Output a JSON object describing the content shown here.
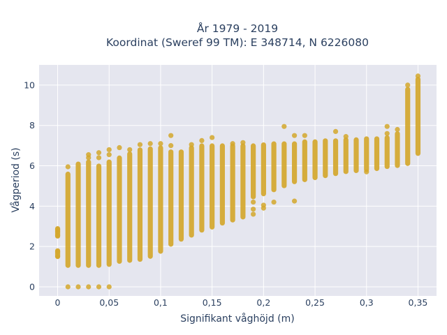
{
  "chart_data": {
    "type": "scatter",
    "title_line1": "År 1979 - 2019",
    "title_line2": "Koordinat (Sweref 99 TM): E 348714, N 6226080",
    "xlabel": "Signifikant våghöjd (m)",
    "ylabel": "Vågperiod (s)",
    "xlim": [
      -0.018,
      0.368
    ],
    "ylim": [
      -0.45,
      11.0
    ],
    "grid": true,
    "x_ticks": [
      0,
      0.05,
      0.1,
      0.15,
      0.2,
      0.25,
      0.3,
      0.35
    ],
    "x_tick_labels": [
      "0",
      "0,05",
      "0,1",
      "0,15",
      "0,2",
      "0,25",
      "0,3",
      "0,35"
    ],
    "y_ticks": [
      0,
      2,
      4,
      6,
      8,
      10
    ],
    "y_tick_labels": [
      "0",
      "2",
      "4",
      "6",
      "8",
      "10"
    ],
    "marker_color": "#d4a72c",
    "plot_bg": "#e5e6ef",
    "grid_color": "#ffffff",
    "columns": [
      {
        "x": 0.0,
        "ranges": [
          [
            1.5,
            1.8
          ],
          [
            2.5,
            2.9
          ]
        ],
        "outliers": [
          1.5,
          1.75,
          2.55,
          2.75,
          2.85
        ]
      },
      {
        "x": 0.01,
        "ranges": [
          [
            1.05,
            5.6
          ]
        ],
        "outliers": [
          0,
          5.95
        ]
      },
      {
        "x": 0.02,
        "ranges": [
          [
            1.05,
            6.1
          ]
        ],
        "outliers": [
          0
        ]
      },
      {
        "x": 0.03,
        "ranges": [
          [
            1.05,
            6.2
          ]
        ],
        "outliers": [
          0,
          6.4,
          6.55
        ]
      },
      {
        "x": 0.04,
        "ranges": [
          [
            1.05,
            6.0
          ]
        ],
        "outliers": [
          0,
          6.4,
          6.65
        ]
      },
      {
        "x": 0.05,
        "ranges": [
          [
            1.1,
            6.2
          ]
        ],
        "outliers": [
          0,
          6.55,
          6.8
        ]
      },
      {
        "x": 0.06,
        "ranges": [
          [
            1.25,
            6.4
          ]
        ],
        "outliers": [
          6.9
        ]
      },
      {
        "x": 0.07,
        "ranges": [
          [
            1.3,
            6.6
          ]
        ],
        "outliers": [
          6.8
        ]
      },
      {
        "x": 0.08,
        "ranges": [
          [
            1.35,
            6.8
          ]
        ],
        "outliers": [
          7.05
        ]
      },
      {
        "x": 0.09,
        "ranges": [
          [
            1.5,
            6.85
          ]
        ],
        "outliers": [
          7.1
        ]
      },
      {
        "x": 0.1,
        "ranges": [
          [
            1.75,
            6.9
          ]
        ],
        "outliers": [
          7.1
        ]
      },
      {
        "x": 0.11,
        "ranges": [
          [
            2.1,
            6.7
          ]
        ],
        "outliers": [
          7.0,
          7.5
        ]
      },
      {
        "x": 0.12,
        "ranges": [
          [
            2.35,
            6.7
          ]
        ],
        "outliers": []
      },
      {
        "x": 0.13,
        "ranges": [
          [
            2.55,
            6.9
          ]
        ],
        "outliers": [
          7.05
        ]
      },
      {
        "x": 0.14,
        "ranges": [
          [
            2.8,
            7.0
          ]
        ],
        "outliers": [
          7.25
        ]
      },
      {
        "x": 0.15,
        "ranges": [
          [
            2.95,
            7.0
          ]
        ],
        "outliers": [
          7.4
        ]
      },
      {
        "x": 0.16,
        "ranges": [
          [
            3.15,
            7.0
          ]
        ],
        "outliers": []
      },
      {
        "x": 0.17,
        "ranges": [
          [
            3.3,
            7.0
          ]
        ],
        "outliers": [
          7.1
        ]
      },
      {
        "x": 0.18,
        "ranges": [
          [
            3.45,
            7.0
          ]
        ],
        "outliers": [
          7.15
        ]
      },
      {
        "x": 0.19,
        "ranges": [
          [
            4.45,
            7.0
          ]
        ],
        "outliers": [
          3.6,
          3.85,
          4.2
        ]
      },
      {
        "x": 0.2,
        "ranges": [
          [
            4.6,
            7.05
          ]
        ],
        "outliers": [
          3.9,
          4.05
        ]
      },
      {
        "x": 0.21,
        "ranges": [
          [
            4.8,
            7.1
          ]
        ],
        "outliers": [
          4.2
        ]
      },
      {
        "x": 0.22,
        "ranges": [
          [
            5.0,
            7.1
          ]
        ],
        "outliers": [
          7.95
        ]
      },
      {
        "x": 0.23,
        "ranges": [
          [
            5.2,
            7.1
          ]
        ],
        "outliers": [
          4.25,
          7.5
        ]
      },
      {
        "x": 0.24,
        "ranges": [
          [
            5.3,
            7.2
          ]
        ],
        "outliers": [
          7.5
        ]
      },
      {
        "x": 0.25,
        "ranges": [
          [
            5.4,
            7.2
          ]
        ],
        "outliers": []
      },
      {
        "x": 0.26,
        "ranges": [
          [
            5.5,
            7.25
          ]
        ],
        "outliers": []
      },
      {
        "x": 0.27,
        "ranges": [
          [
            5.6,
            7.25
          ]
        ],
        "outliers": [
          7.7
        ]
      },
      {
        "x": 0.28,
        "ranges": [
          [
            5.7,
            7.3
          ]
        ],
        "outliers": [
          7.45
        ]
      },
      {
        "x": 0.29,
        "ranges": [
          [
            5.75,
            7.3
          ]
        ],
        "outliers": []
      },
      {
        "x": 0.3,
        "ranges": [
          [
            5.8,
            7.35
          ]
        ],
        "outliers": [
          5.7
        ]
      },
      {
        "x": 0.31,
        "ranges": [
          [
            5.85,
            7.35
          ]
        ],
        "outliers": []
      },
      {
        "x": 0.32,
        "ranges": [
          [
            5.95,
            7.4
          ]
        ],
        "outliers": [
          7.6,
          7.95
        ]
      },
      {
        "x": 0.33,
        "ranges": [
          [
            6.0,
            7.6
          ]
        ],
        "outliers": [
          7.8
        ]
      },
      {
        "x": 0.34,
        "ranges": [
          [
            6.1,
            9.8
          ]
        ],
        "outliers": [
          10.0
        ]
      },
      {
        "x": 0.35,
        "ranges": [
          [
            6.6,
            10.3
          ]
        ],
        "outliers": [
          10.45
        ]
      }
    ]
  }
}
